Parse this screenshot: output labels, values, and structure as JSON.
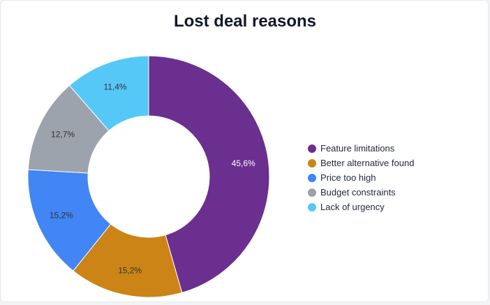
{
  "title": "Lost deal reasons",
  "chart_data": {
    "type": "pie",
    "donut": true,
    "title": "Lost deal reasons",
    "legend_position": "right",
    "start_angle_deg": 0,
    "direction": "clockwise",
    "slices": [
      {
        "label": "Feature limitations",
        "value": 45.6,
        "display": "45,6%",
        "color": "#6b2f8f",
        "label_color": "#ffffff"
      },
      {
        "label": "Better alternative found",
        "value": 15.2,
        "display": "15,2%",
        "color": "#cc8416",
        "label_color": "#333333"
      },
      {
        "label": "Price too high",
        "value": 15.2,
        "display": "15,2%",
        "color": "#4285f4",
        "label_color": "#333333"
      },
      {
        "label": "Budget constraints",
        "value": 12.7,
        "display": "12,7%",
        "color": "#9ca3ad",
        "label_color": "#333333"
      },
      {
        "label": "Lack of urgency",
        "value": 11.4,
        "display": "11,4%",
        "color": "#56c8f8",
        "label_color": "#333333"
      }
    ]
  }
}
